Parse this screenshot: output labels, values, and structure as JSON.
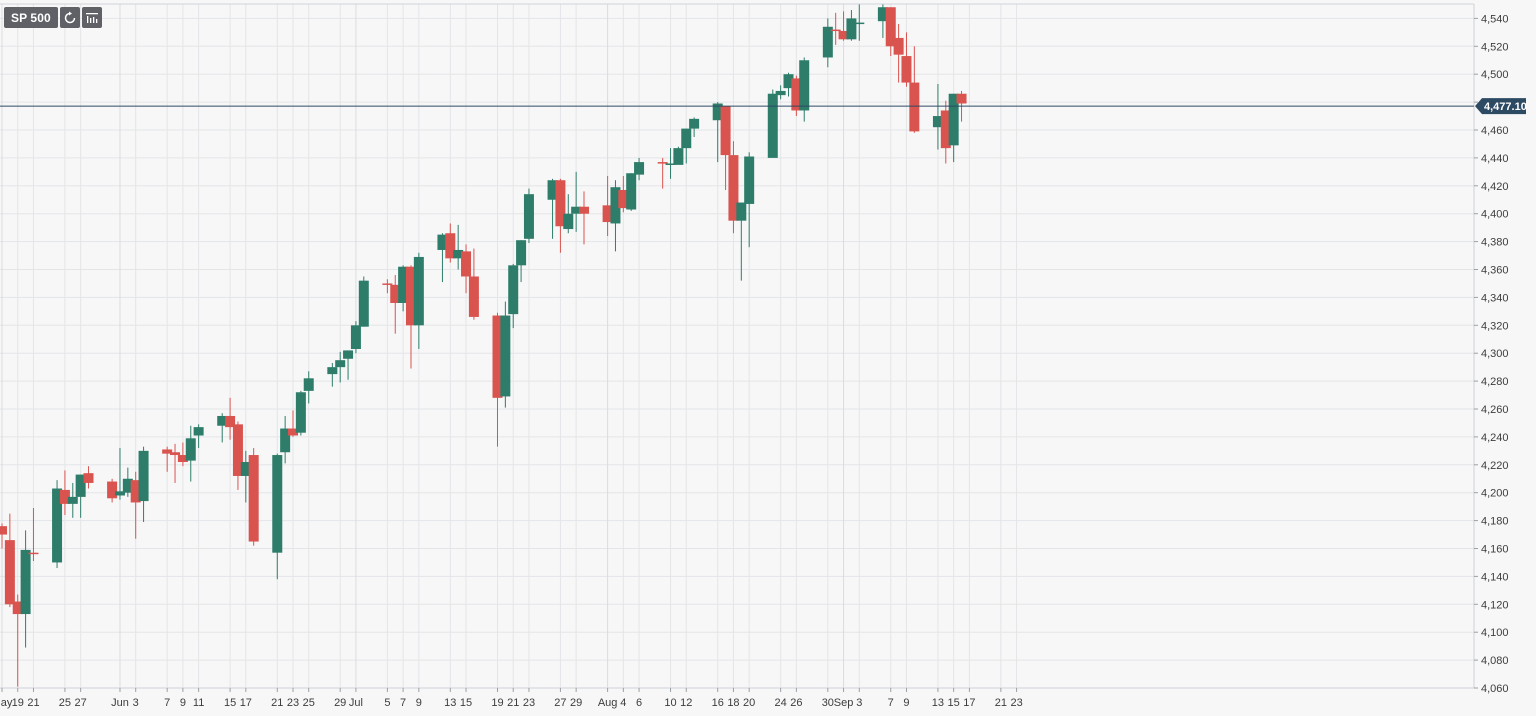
{
  "toolbar": {
    "symbol": "SP 500",
    "refresh_icon": "refresh-icon",
    "chart_icon": "bar-chart-icon"
  },
  "colors": {
    "up": "#2e7d6a",
    "down": "#d9534f",
    "price_line": "#2d4a63",
    "grid": "#e3e5e8",
    "background": "#f7f7f8"
  },
  "chart_data": {
    "type": "candlestick",
    "title": "",
    "xlabel": "",
    "ylabel": "",
    "ylim": [
      4060,
      4550
    ],
    "yticks": [
      4060,
      4080,
      4100,
      4120,
      4140,
      4160,
      4180,
      4200,
      4220,
      4240,
      4260,
      4280,
      4300,
      4320,
      4340,
      4360,
      4380,
      4400,
      4420,
      4440,
      4460,
      4480,
      4500,
      4520,
      4540
    ],
    "ytick_labels": [
      "4,060",
      "4,080",
      "4,100",
      "4,120",
      "4,140",
      "4,160",
      "4,180",
      "4,200",
      "4,220",
      "4,240",
      "4,260",
      "4,280",
      "4,300",
      "4,320",
      "4,340",
      "4,360",
      "4,380",
      "4,400",
      "4,420",
      "4,440",
      "4,460",
      "4,480",
      "4,500",
      "4,520",
      "4,540"
    ],
    "xtick_labels": [
      "May",
      "19",
      "21",
      "25",
      "27",
      "Jun",
      "3",
      "7",
      "9",
      "11",
      "15",
      "17",
      "21",
      "23",
      "25",
      "29",
      "Jul",
      "5",
      "7",
      "9",
      "13",
      "15",
      "19",
      "21",
      "23",
      "27",
      "29",
      "Aug",
      "4",
      "6",
      "10",
      "12",
      "16",
      "18",
      "20",
      "24",
      "26",
      "30",
      "Sep",
      "3",
      "7",
      "9",
      "13",
      "15",
      "17",
      "21",
      "23"
    ],
    "xtick_dates": [
      "2021-05-17",
      "2021-05-19",
      "2021-05-21",
      "2021-05-25",
      "2021-05-27",
      "2021-06-01",
      "2021-06-03",
      "2021-06-07",
      "2021-06-09",
      "2021-06-11",
      "2021-06-15",
      "2021-06-17",
      "2021-06-21",
      "2021-06-23",
      "2021-06-25",
      "2021-06-29",
      "2021-07-01",
      "2021-07-05",
      "2021-07-07",
      "2021-07-09",
      "2021-07-13",
      "2021-07-15",
      "2021-07-19",
      "2021-07-21",
      "2021-07-23",
      "2021-07-27",
      "2021-07-29",
      "2021-08-02",
      "2021-08-04",
      "2021-08-06",
      "2021-08-10",
      "2021-08-12",
      "2021-08-16",
      "2021-08-18",
      "2021-08-20",
      "2021-08-24",
      "2021-08-26",
      "2021-08-30",
      "2021-09-01",
      "2021-09-03",
      "2021-09-07",
      "2021-09-09",
      "2021-09-13",
      "2021-09-15",
      "2021-09-17",
      "2021-09-21",
      "2021-09-23"
    ],
    "current_price": 4477.1,
    "current_price_label": "4,477.10",
    "grid": true,
    "candles": [
      {
        "date": "2021-05-17",
        "open": 4176,
        "high": 4178,
        "low": 4160,
        "close": 4170
      },
      {
        "date": "2021-05-18",
        "open": 4166,
        "high": 4185,
        "low": 4118,
        "close": 4120
      },
      {
        "date": "2021-05-19",
        "open": 4122,
        "high": 4127,
        "low": 4061,
        "close": 4113
      },
      {
        "date": "2021-05-20",
        "open": 4113,
        "high": 4173,
        "low": 4089,
        "close": 4159
      },
      {
        "date": "2021-05-21",
        "open": 4157,
        "high": 4189,
        "low": 4151,
        "close": 4156
      },
      {
        "date": "2021-05-24",
        "open": 4150,
        "high": 4209,
        "low": 4146,
        "close": 4203
      },
      {
        "date": "2021-05-25",
        "open": 4202,
        "high": 4216,
        "low": 4184,
        "close": 4192
      },
      {
        "date": "2021-05-26",
        "open": 4192,
        "high": 4207,
        "low": 4182,
        "close": 4197
      },
      {
        "date": "2021-05-27",
        "open": 4197,
        "high": 4213,
        "low": 4182,
        "close": 4213
      },
      {
        "date": "2021-05-28",
        "open": 4214,
        "high": 4219,
        "low": 4203,
        "close": 4207
      },
      {
        "date": "2021-05-31",
        "open": 4208,
        "high": 4210,
        "low": 4193,
        "close": 4196
      },
      {
        "date": "2021-06-01",
        "open": 4198,
        "high": 4232,
        "low": 4195,
        "close": 4201
      },
      {
        "date": "2021-06-02",
        "open": 4200,
        "high": 4218,
        "low": 4197,
        "close": 4210
      },
      {
        "date": "2021-06-03",
        "open": 4209,
        "high": 4215,
        "low": 4167,
        "close": 4193
      },
      {
        "date": "2021-06-04",
        "open": 4194,
        "high": 4233,
        "low": 4179,
        "close": 4230
      },
      {
        "date": "2021-06-07",
        "open": 4231,
        "high": 4233,
        "low": 4215,
        "close": 4228
      },
      {
        "date": "2021-06-08",
        "open": 4229,
        "high": 4235,
        "low": 4207,
        "close": 4227
      },
      {
        "date": "2021-06-09",
        "open": 4227,
        "high": 4236,
        "low": 4219,
        "close": 4222
      },
      {
        "date": "2021-06-10",
        "open": 4223,
        "high": 4248,
        "low": 4208,
        "close": 4239
      },
      {
        "date": "2021-06-11",
        "open": 4241,
        "high": 4249,
        "low": 4232,
        "close": 4247
      },
      {
        "date": "2021-06-14",
        "open": 4248,
        "high": 4257,
        "low": 4236,
        "close": 4255
      },
      {
        "date": "2021-06-15",
        "open": 4255,
        "high": 4268,
        "low": 4238,
        "close": 4247
      },
      {
        "date": "2021-06-16",
        "open": 4249,
        "high": 4251,
        "low": 4202,
        "close": 4212
      },
      {
        "date": "2021-06-17",
        "open": 4212,
        "high": 4230,
        "low": 4193,
        "close": 4222
      },
      {
        "date": "2021-06-18",
        "open": 4227,
        "high": 4232,
        "low": 4162,
        "close": 4165
      },
      {
        "date": "2021-06-21",
        "open": 4157,
        "high": 4228,
        "low": 4138,
        "close": 4227
      },
      {
        "date": "2021-06-22",
        "open": 4229,
        "high": 4255,
        "low": 4221,
        "close": 4246
      },
      {
        "date": "2021-06-23",
        "open": 4246,
        "high": 4259,
        "low": 4240,
        "close": 4241
      },
      {
        "date": "2021-06-24",
        "open": 4243,
        "high": 4273,
        "low": 4241,
        "close": 4272
      },
      {
        "date": "2021-06-25",
        "open": 4273,
        "high": 4287,
        "low": 4264,
        "close": 4282
      },
      {
        "date": "2021-06-28",
        "open": 4285,
        "high": 4293,
        "low": 4276,
        "close": 4290
      },
      {
        "date": "2021-06-29",
        "open": 4290,
        "high": 4301,
        "low": 4279,
        "close": 4295
      },
      {
        "date": "2021-06-30",
        "open": 4296,
        "high": 4301,
        "low": 4281,
        "close": 4302
      },
      {
        "date": "2021-07-01",
        "open": 4303,
        "high": 4323,
        "low": 4300,
        "close": 4320
      },
      {
        "date": "2021-07-02",
        "open": 4319,
        "high": 4355,
        "low": 4319,
        "close": 4352
      },
      {
        "date": "2021-07-05",
        "open": 4350,
        "high": 4353,
        "low": 4343,
        "close": 4349
      },
      {
        "date": "2021-07-06",
        "open": 4349,
        "high": 4356,
        "low": 4314,
        "close": 4336
      },
      {
        "date": "2021-07-07",
        "open": 4336,
        "high": 4363,
        "low": 4330,
        "close": 4362
      },
      {
        "date": "2021-07-08",
        "open": 4362,
        "high": 4363,
        "low": 4289,
        "close": 4320
      },
      {
        "date": "2021-07-09",
        "open": 4320,
        "high": 4372,
        "low": 4303,
        "close": 4369
      },
      {
        "date": "2021-07-12",
        "open": 4374,
        "high": 4386,
        "low": 4351,
        "close": 4385
      },
      {
        "date": "2021-07-13",
        "open": 4386,
        "high": 4393,
        "low": 4365,
        "close": 4368
      },
      {
        "date": "2021-07-14",
        "open": 4368,
        "high": 4392,
        "low": 4360,
        "close": 4374
      },
      {
        "date": "2021-07-15",
        "open": 4373,
        "high": 4378,
        "low": 4343,
        "close": 4355
      },
      {
        "date": "2021-07-16",
        "open": 4355,
        "high": 4375,
        "low": 4324,
        "close": 4326
      },
      {
        "date": "2021-07-19",
        "open": 4327,
        "high": 4329,
        "low": 4233,
        "close": 4268
      },
      {
        "date": "2021-07-20",
        "open": 4269,
        "high": 4337,
        "low": 4261,
        "close": 4327
      },
      {
        "date": "2021-07-21",
        "open": 4328,
        "high": 4364,
        "low": 4318,
        "close": 4363
      },
      {
        "date": "2021-07-22",
        "open": 4363,
        "high": 4381,
        "low": 4351,
        "close": 4381
      },
      {
        "date": "2021-07-23",
        "open": 4382,
        "high": 4418,
        "low": 4379,
        "close": 4414
      },
      {
        "date": "2021-07-26",
        "open": 4410,
        "high": 4425,
        "low": 4382,
        "close": 4424
      },
      {
        "date": "2021-07-27",
        "open": 4424,
        "high": 4425,
        "low": 4372,
        "close": 4391
      },
      {
        "date": "2021-07-28",
        "open": 4389,
        "high": 4414,
        "low": 4386,
        "close": 4400
      },
      {
        "date": "2021-07-29",
        "open": 4400,
        "high": 4430,
        "low": 4387,
        "close": 4405
      },
      {
        "date": "2021-07-30",
        "open": 4405,
        "high": 4416,
        "low": 4378,
        "close": 4400
      },
      {
        "date": "2021-08-02",
        "open": 4406,
        "high": 4427,
        "low": 4384,
        "close": 4394
      },
      {
        "date": "2021-08-03",
        "open": 4393,
        "high": 4424,
        "low": 4373,
        "close": 4419
      },
      {
        "date": "2021-08-04",
        "open": 4417,
        "high": 4427,
        "low": 4401,
        "close": 4404
      },
      {
        "date": "2021-08-05",
        "open": 4403,
        "high": 4429,
        "low": 4402,
        "close": 4429
      },
      {
        "date": "2021-08-06",
        "open": 4428,
        "high": 4440,
        "low": 4424,
        "close": 4437
      },
      {
        "date": "2021-08-09",
        "open": 4437,
        "high": 4440,
        "low": 4418,
        "close": 4436
      },
      {
        "date": "2021-08-10",
        "open": 4436,
        "high": 4447,
        "low": 4425,
        "close": 4436
      },
      {
        "date": "2021-08-11",
        "open": 4435,
        "high": 4448,
        "low": 4436,
        "close": 4447
      },
      {
        "date": "2021-08-12",
        "open": 4447,
        "high": 4461,
        "low": 4436,
        "close": 4461
      },
      {
        "date": "2021-08-13",
        "open": 4461,
        "high": 4469,
        "low": 4455,
        "close": 4468
      },
      {
        "date": "2021-08-16",
        "open": 4467,
        "high": 4480,
        "low": 4437,
        "close": 4479
      },
      {
        "date": "2021-08-17",
        "open": 4477,
        "high": 4477,
        "low": 4417,
        "close": 4442
      },
      {
        "date": "2021-08-18",
        "open": 4442,
        "high": 4452,
        "low": 4386,
        "close": 4395
      },
      {
        "date": "2021-08-19",
        "open": 4395,
        "high": 4408,
        "low": 4352,
        "close": 4408
      },
      {
        "date": "2021-08-20",
        "open": 4407,
        "high": 4444,
        "low": 4376,
        "close": 4441
      },
      {
        "date": "2021-08-23",
        "open": 4440,
        "high": 4489,
        "low": 4441,
        "close": 4486
      },
      {
        "date": "2021-08-24",
        "open": 4485,
        "high": 4492,
        "low": 4482,
        "close": 4488
      },
      {
        "date": "2021-08-25",
        "open": 4490,
        "high": 4501,
        "low": 4484,
        "close": 4500
      },
      {
        "date": "2021-08-26",
        "open": 4497,
        "high": 4499,
        "low": 4470,
        "close": 4474
      },
      {
        "date": "2021-08-27",
        "open": 4474,
        "high": 4512,
        "low": 4466,
        "close": 4510
      },
      {
        "date": "2021-08-30",
        "open": 4512,
        "high": 4540,
        "low": 4505,
        "close": 4534
      },
      {
        "date": "2021-08-31",
        "open": 4532,
        "high": 4544,
        "low": 4521,
        "close": 4531
      },
      {
        "date": "2021-09-01",
        "open": 4531,
        "high": 4545,
        "low": 4524,
        "close": 4525
      },
      {
        "date": "2021-09-02",
        "open": 4525,
        "high": 4546,
        "low": 4524,
        "close": 4540
      },
      {
        "date": "2021-09-03",
        "open": 4536,
        "high": 4550,
        "low": 4524,
        "close": 4537
      },
      {
        "date": "2021-09-06",
        "open": 4538,
        "high": 4550,
        "low": 4526,
        "close": 4548
      },
      {
        "date": "2021-09-07",
        "open": 4548,
        "high": 4548,
        "low": 4513,
        "close": 4520
      },
      {
        "date": "2021-09-08",
        "open": 4526,
        "high": 4536,
        "low": 4494,
        "close": 4514
      },
      {
        "date": "2021-09-09",
        "open": 4513,
        "high": 4530,
        "low": 4491,
        "close": 4494
      },
      {
        "date": "2021-09-10",
        "open": 4494,
        "high": 4520,
        "low": 4458,
        "close": 4459
      },
      {
        "date": "2021-09-13",
        "open": 4462,
        "high": 4493,
        "low": 4446,
        "close": 4470
      },
      {
        "date": "2021-09-14",
        "open": 4474,
        "high": 4481,
        "low": 4436,
        "close": 4447
      },
      {
        "date": "2021-09-15",
        "open": 4449,
        "high": 4486,
        "low": 4437,
        "close": 4486
      },
      {
        "date": "2021-09-16",
        "open": 4486,
        "high": 4488,
        "low": 4466,
        "close": 4479
      }
    ]
  }
}
